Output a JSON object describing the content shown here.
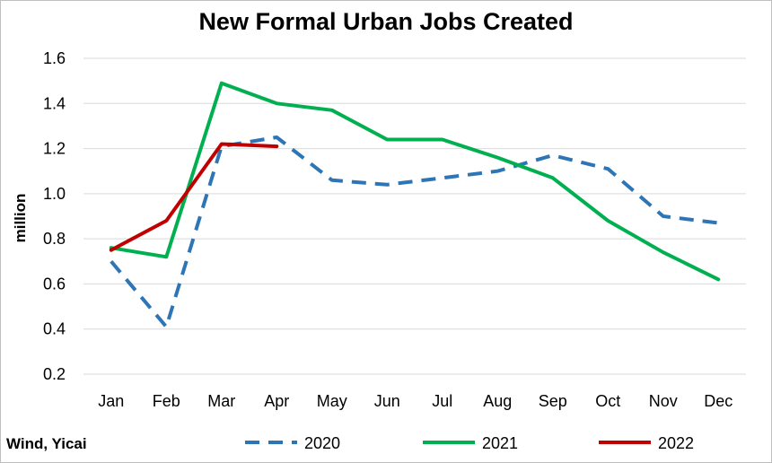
{
  "chart_data": {
    "type": "line",
    "title": "New Formal Urban Jobs Created",
    "xlabel": "",
    "ylabel": "million",
    "ylim": [
      0.2,
      1.6
    ],
    "yticks": [
      0.2,
      0.4,
      0.6,
      0.8,
      1.0,
      1.2,
      1.4,
      1.6
    ],
    "ytick_labels": [
      "0.2",
      "0.4",
      "0.6",
      "0.8",
      "1.0",
      "1.2",
      "1.4",
      "1.6"
    ],
    "grid": "horizontal",
    "legend_position": "bottom",
    "categories": [
      "Jan",
      "Feb",
      "Mar",
      "Apr",
      "May",
      "Jun",
      "Jul",
      "Aug",
      "Sep",
      "Oct",
      "Nov",
      "Dec"
    ],
    "series": [
      {
        "name": "2020",
        "color": "#2e75b6",
        "dash": "dashed",
        "values": [
          0.7,
          0.41,
          1.21,
          1.25,
          1.06,
          1.04,
          1.07,
          1.1,
          1.17,
          1.11,
          0.9,
          0.87
        ]
      },
      {
        "name": "2021",
        "color": "#00b050",
        "dash": "solid",
        "values": [
          0.76,
          0.72,
          1.49,
          1.4,
          1.37,
          1.24,
          1.24,
          1.16,
          1.07,
          0.88,
          0.74,
          0.62
        ]
      },
      {
        "name": "2022",
        "color": "#c00000",
        "dash": "solid",
        "values": [
          0.75,
          0.88,
          1.22,
          1.21,
          null,
          null,
          null,
          null,
          null,
          null,
          null,
          null
        ]
      }
    ]
  },
  "source": "Wind, Yicai"
}
